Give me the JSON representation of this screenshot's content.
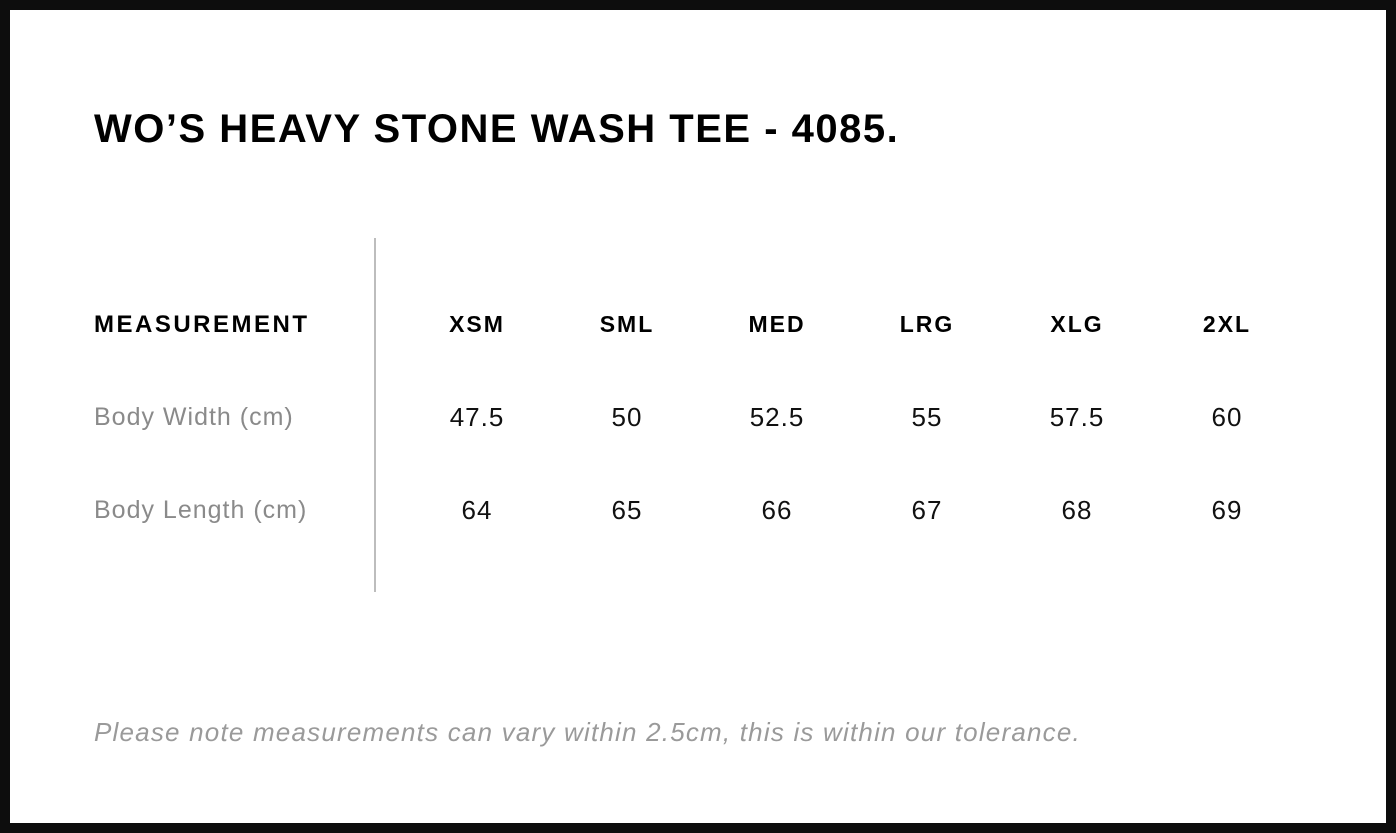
{
  "page": {
    "title": "WO’S HEAVY STONE WASH TEE - 4085.",
    "note": "Please note measurements can vary within 2.5cm, this is within our tolerance."
  },
  "size_chart": {
    "header_label": "MEASUREMENT",
    "sizes": [
      "XSM",
      "SML",
      "MED",
      "LRG",
      "XLG",
      "2XL"
    ],
    "rows": [
      {
        "label": "Body Width (cm)",
        "values": [
          "47.5",
          "50",
          "52.5",
          "55",
          "57.5",
          "60"
        ]
      },
      {
        "label": "Body Length (cm)",
        "values": [
          "64",
          "65",
          "66",
          "67",
          "68",
          "69"
        ]
      }
    ]
  },
  "chart_data": {
    "type": "table",
    "title": "WO’S HEAVY STONE WASH TEE - 4085.",
    "columns": [
      "MEASUREMENT",
      "XSM",
      "SML",
      "MED",
      "LRG",
      "XLG",
      "2XL"
    ],
    "rows": [
      [
        "Body Width (cm)",
        47.5,
        50,
        52.5,
        55,
        57.5,
        60
      ],
      [
        "Body Length (cm)",
        64,
        65,
        66,
        67,
        68,
        69
      ]
    ],
    "footnote": "Please note measurements can vary within 2.5cm, this is within our tolerance."
  },
  "colors": {
    "frame_border": "#0d0d0d",
    "heading_text": "#000000",
    "row_label_gray": "#8a8a8a",
    "note_gray": "#9a9a9a",
    "divider_gray": "#bdbdbd",
    "background": "#ffffff"
  }
}
